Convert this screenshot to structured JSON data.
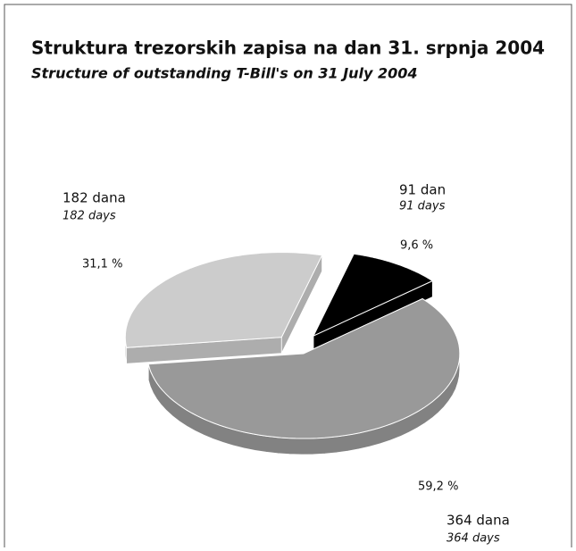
{
  "chart_data": {
    "type": "pie3d",
    "title": "Struktura trezorskih zapisa na dan 31. srpnja 2004",
    "subtitle": "Structure of outstanding T-Bill's on 31 July 2004",
    "categories": [
      "91 dan",
      "364 dana",
      "182 dana"
    ],
    "category_subtitles": [
      "91 days",
      "364 days",
      "182 days"
    ],
    "values": [
      9.6,
      59.2,
      31.1
    ],
    "value_labels": [
      "9,6 %",
      "59,2 %",
      "31,1 %"
    ],
    "colors": [
      "#000000",
      "#999999",
      "#cccccc"
    ]
  }
}
